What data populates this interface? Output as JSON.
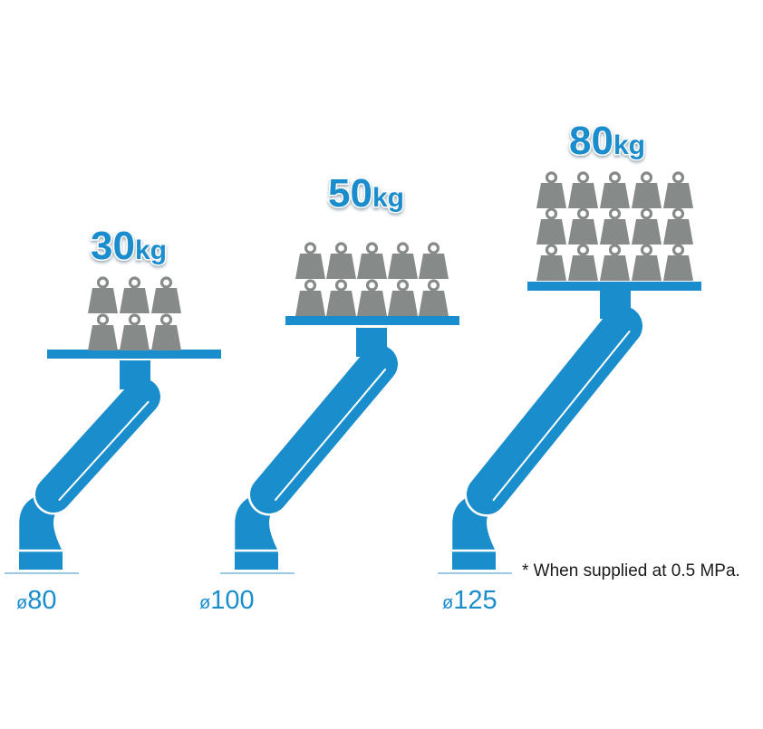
{
  "colors": {
    "arm": "#1a8dcc",
    "arm_outline": "#ffffff",
    "weight": "#868a88",
    "label": "#1a8dcc",
    "shadow": "#8fa1b1",
    "ground": "#9ccbe6",
    "note": "#1a1a1a"
  },
  "units": [
    {
      "id": "d80",
      "capacity_value": "30",
      "capacity_unit": "kg",
      "bore": "80",
      "weight_count": 6
    },
    {
      "id": "d100",
      "capacity_value": "50",
      "capacity_unit": "kg",
      "bore": "100",
      "weight_count": 10
    },
    {
      "id": "d125",
      "capacity_value": "80",
      "capacity_unit": "kg",
      "bore": "125",
      "weight_count": 15
    }
  ],
  "diameter_symbol": "ø",
  "note": "* When supplied at 0.5 MPa."
}
